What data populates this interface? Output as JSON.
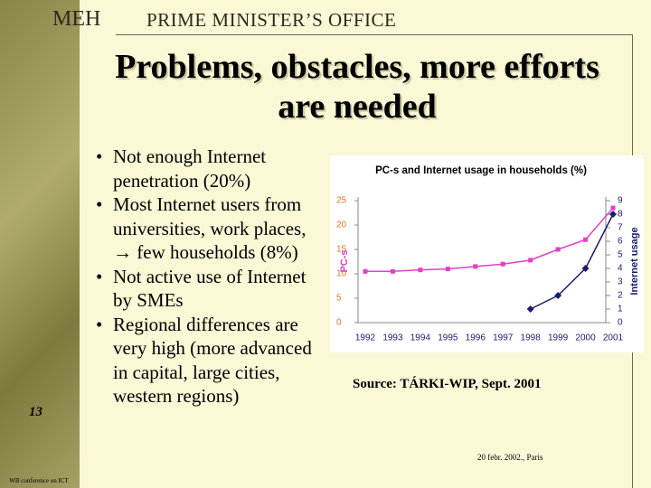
{
  "header": {
    "logo": "MEH",
    "office": "PRIME MINISTER’S OFFICE"
  },
  "title": "Problems, obstacles, more efforts are needed",
  "bullets": [
    "Not enough Internet penetration (20%)",
    "Most Internet users from universities, work places, → few households (8%)",
    "Not active use of Internet by SMEs",
    "Regional differences are very high (more advanced in capital, large cities, western regions)"
  ],
  "page_number": "13",
  "source": "Source: TÁRKI-WIP, Sept. 2001",
  "footer": "20 febr. 2002., Paris",
  "side_note": "WB conference on ICT",
  "chart_data": {
    "type": "line",
    "title": "PC-s and Internet usage in households (%)",
    "categories": [
      "1992",
      "1993",
      "1994",
      "1995",
      "1996",
      "1997",
      "1998",
      "1999",
      "2000",
      "2001"
    ],
    "series": [
      {
        "name": "PC-s",
        "color": "#e040c8",
        "values": [
          10.5,
          10.5,
          10.8,
          11,
          11.5,
          12,
          12.8,
          15,
          17,
          23.5
        ]
      },
      {
        "name": "Internet usage",
        "color": "#1c1c70",
        "axis": "y2",
        "values": [
          null,
          null,
          null,
          null,
          null,
          null,
          1,
          2,
          4,
          8
        ]
      }
    ],
    "ylim": [
      0,
      25
    ],
    "yticks": [
      0,
      5,
      10,
      15,
      20,
      25
    ],
    "y2lim": [
      0,
      9
    ],
    "y2ticks": [
      0,
      1,
      2,
      3,
      4,
      5,
      6,
      7,
      8,
      9
    ],
    "grid": false
  }
}
